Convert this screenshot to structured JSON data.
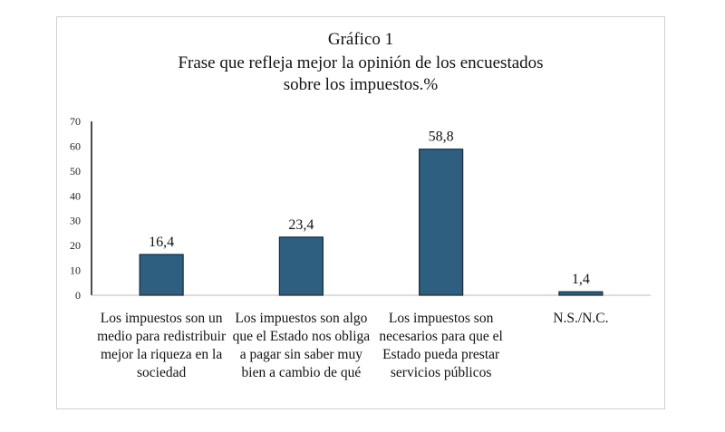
{
  "chart_data": {
    "type": "bar",
    "title": "Gráfico  1",
    "subtitle": [
      "Frase que refleja mejor la opinión de los encuestados",
      "sobre los impuestos.%"
    ],
    "categories": [
      "Los impuestos son un medio para redistribuir mejor la riqueza en la sociedad",
      "Los impuestos son algo que el Estado nos obliga a pagar sin saber muy bien a cambio de qué",
      "Los impuestos son necesarios para que el Estado pueda prestar servicios públicos",
      "N.S./N.C."
    ],
    "values": [
      16.4,
      23.4,
      58.8,
      1.4
    ],
    "data_labels": [
      "16,4",
      "23,4",
      "58,8",
      "1,4"
    ],
    "yticks": [
      0,
      10,
      20,
      30,
      40,
      50,
      60,
      70
    ],
    "ylim": [
      0,
      70
    ],
    "xlabel": "",
    "ylabel": "",
    "bar_color": "#2e5f80"
  }
}
